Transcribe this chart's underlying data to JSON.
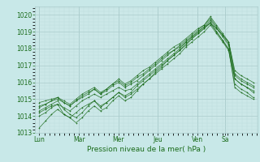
{
  "title": "",
  "xlabel": "Pression niveau de la mer( hPa )",
  "ylabel": "",
  "bg_color": "#c8e8e8",
  "plot_bg_color": "#cce8e8",
  "grid_major_color": "#aacccc",
  "grid_minor_color": "#bbdddd",
  "line_color": "#1a6b1a",
  "ylim": [
    1013.0,
    1020.5
  ],
  "yticks": [
    1013,
    1014,
    1015,
    1016,
    1017,
    1018,
    1019,
    1020
  ],
  "day_labels": [
    "Lun",
    "Mar",
    "Mer",
    "Jeu",
    "Ven",
    "Sa"
  ],
  "day_fracs": [
    0.0,
    0.185,
    0.37,
    0.555,
    0.74,
    0.87
  ],
  "series": [
    [
      1014.2,
      1014.4,
      1014.6,
      1014.7,
      1014.5,
      1014.3,
      1014.6,
      1014.9,
      1015.1,
      1015.3,
      1015.1,
      1015.3,
      1015.5,
      1015.7,
      1015.5,
      1015.6,
      1015.9,
      1016.2,
      1016.5,
      1016.8,
      1017.1,
      1017.4,
      1017.7,
      1018.0,
      1018.4,
      1018.7,
      1019.0,
      1019.3,
      1019.5,
      1019.2,
      1018.8,
      1018.3,
      1016.2,
      1015.9,
      1015.7,
      1015.5
    ],
    [
      1013.3,
      1013.7,
      1014.1,
      1014.4,
      1014.1,
      1013.9,
      1014.2,
      1014.5,
      1014.7,
      1014.9,
      1014.6,
      1014.8,
      1015.1,
      1015.4,
      1015.1,
      1015.3,
      1015.6,
      1015.9,
      1016.2,
      1016.6,
      1016.9,
      1017.3,
      1017.6,
      1017.9,
      1018.3,
      1018.6,
      1018.9,
      1019.2,
      1019.5,
      1019.0,
      1018.5,
      1017.9,
      1015.7,
      1015.4,
      1015.2,
      1015.0
    ],
    [
      1014.5,
      1014.7,
      1014.9,
      1015.0,
      1014.8,
      1014.6,
      1014.9,
      1015.2,
      1015.4,
      1015.6,
      1015.3,
      1015.5,
      1015.8,
      1016.0,
      1015.7,
      1015.9,
      1016.1,
      1016.4,
      1016.7,
      1017.0,
      1017.3,
      1017.6,
      1017.9,
      1018.1,
      1018.4,
      1018.7,
      1019.0,
      1019.3,
      1019.7,
      1019.2,
      1018.7,
      1018.2,
      1016.4,
      1016.1,
      1015.9,
      1015.7
    ],
    [
      1014.0,
      1014.2,
      1014.5,
      1014.7,
      1014.1,
      1013.9,
      1013.6,
      1013.9,
      1014.3,
      1014.6,
      1014.3,
      1014.5,
      1014.9,
      1015.2,
      1014.9,
      1015.1,
      1015.5,
      1015.9,
      1016.2,
      1016.5,
      1016.8,
      1017.1,
      1017.4,
      1017.7,
      1018.1,
      1018.4,
      1018.7,
      1019.0,
      1019.4,
      1018.9,
      1018.4,
      1017.9,
      1015.9,
      1015.6,
      1015.4,
      1015.1
    ],
    [
      1014.8,
      1014.9,
      1015.0,
      1015.1,
      1014.9,
      1014.7,
      1015.0,
      1015.3,
      1015.5,
      1015.7,
      1015.4,
      1015.6,
      1015.9,
      1016.1,
      1015.8,
      1016.0,
      1016.3,
      1016.5,
      1016.8,
      1017.1,
      1017.4,
      1017.7,
      1017.9,
      1018.2,
      1018.5,
      1018.8,
      1019.1,
      1019.4,
      1019.8,
      1019.3,
      1018.8,
      1018.4,
      1016.7,
      1016.4,
      1016.2,
      1016.0
    ],
    [
      1014.3,
      1014.5,
      1014.7,
      1014.9,
      1014.4,
      1014.1,
      1013.9,
      1014.2,
      1014.6,
      1014.9,
      1014.5,
      1014.8,
      1015.1,
      1015.4,
      1015.2,
      1015.4,
      1015.8,
      1016.1,
      1016.4,
      1016.7,
      1017.0,
      1017.3,
      1017.6,
      1017.9,
      1018.2,
      1018.6,
      1018.9,
      1019.2,
      1019.6,
      1019.0,
      1018.5,
      1018.0,
      1016.2,
      1015.9,
      1015.7,
      1015.4
    ],
    [
      1014.6,
      1014.7,
      1014.9,
      1015.1,
      1014.8,
      1014.6,
      1014.9,
      1015.1,
      1015.3,
      1015.6,
      1015.3,
      1015.6,
      1015.9,
      1016.2,
      1015.9,
      1016.1,
      1016.4,
      1016.7,
      1016.9,
      1017.2,
      1017.5,
      1017.8,
      1018.1,
      1018.3,
      1018.6,
      1018.9,
      1019.2,
      1019.4,
      1019.9,
      1019.4,
      1018.9,
      1018.4,
      1016.5,
      1016.2,
      1016.0,
      1015.8
    ]
  ]
}
